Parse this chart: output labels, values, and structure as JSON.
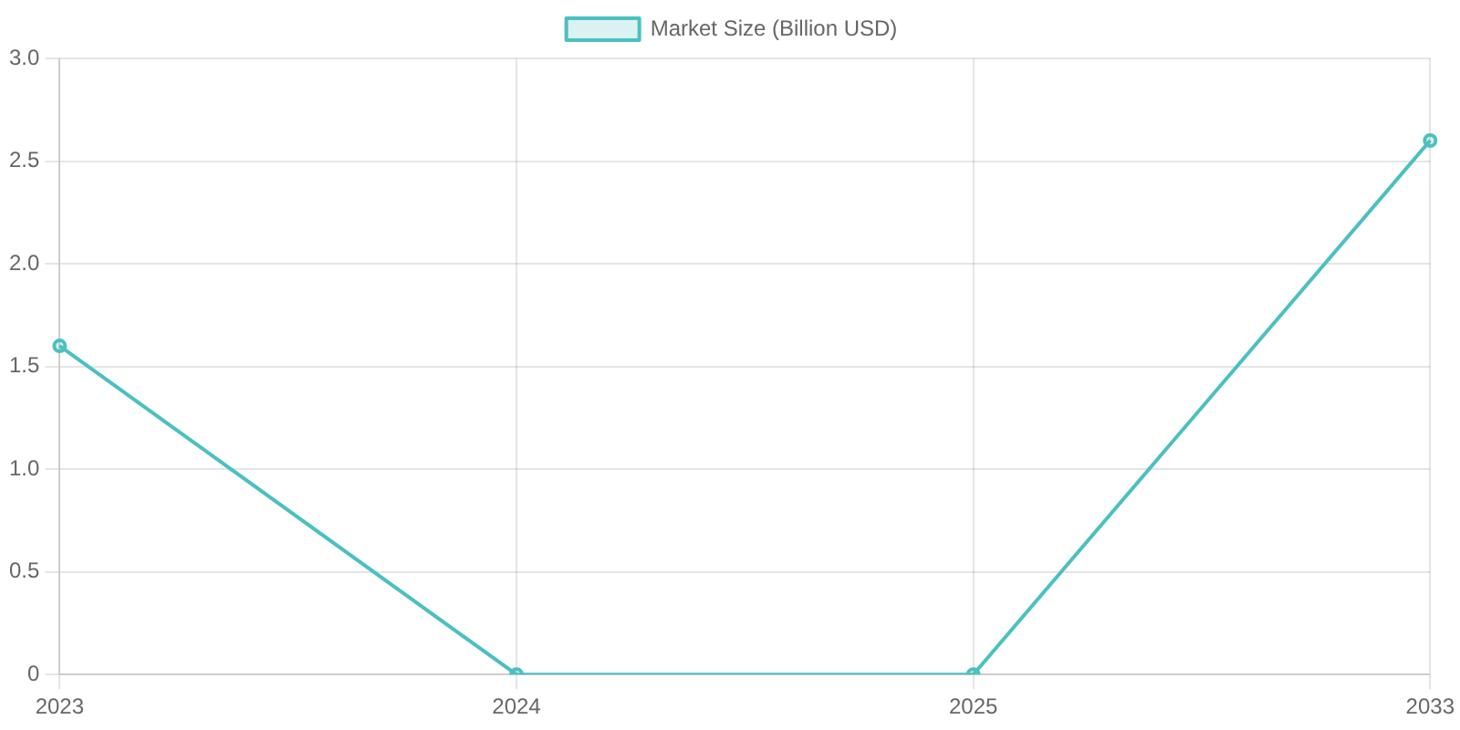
{
  "chart_data": {
    "type": "line",
    "categories": [
      "2023",
      "2024",
      "2025",
      "2033"
    ],
    "series": [
      {
        "name": "Market Size (Billion USD)",
        "color": "#4bc0c0",
        "values": [
          1.6,
          0,
          0,
          2.6
        ]
      }
    ],
    "ylim": [
      0,
      3
    ],
    "yticks": [
      0,
      0.5,
      {
        "value": 1,
        "label": "1.0"
      },
      1.5,
      {
        "value": 2,
        "label": "2.0"
      },
      2.5,
      {
        "value": 3,
        "label": "3.0"
      }
    ],
    "grid": true,
    "legend": "top",
    "marker": "circle",
    "line_style": "solid"
  }
}
